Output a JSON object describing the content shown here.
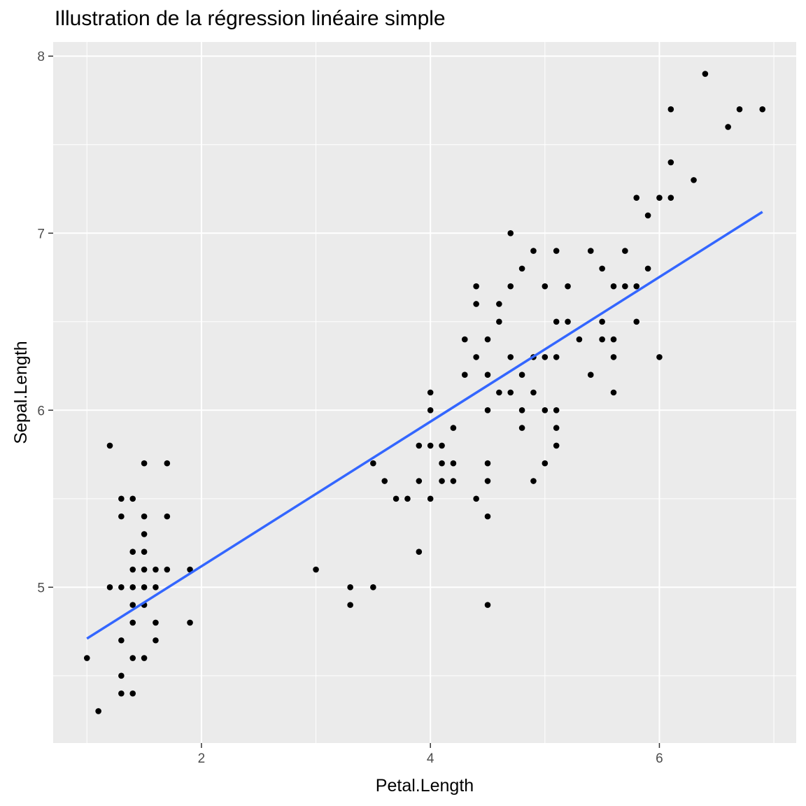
{
  "chart_data": {
    "type": "scatter",
    "title": "Illustration de la régression linéaire simple",
    "xlabel": "Petal.Length",
    "ylabel": "Sepal.Length",
    "xlim": [
      0.705,
      7.195
    ],
    "ylim": [
      4.12,
      8.08
    ],
    "x_ticks": [
      2,
      4,
      6
    ],
    "y_ticks": [
      5,
      6,
      7,
      8
    ],
    "x_tick_labels": [
      "2",
      "4",
      "6"
    ],
    "y_tick_labels": [
      "5",
      "6",
      "7",
      "8"
    ],
    "grid": true,
    "legend": "none",
    "colors": {
      "panel": "#ebebeb",
      "grid": "#ffffff",
      "points": "#000000",
      "line": "#3366ff"
    },
    "regression_line": {
      "x": [
        1.0,
        6.9
      ],
      "y": [
        4.71,
        7.12
      ]
    },
    "points": [
      [
        1.0,
        4.6
      ],
      [
        1.1,
        4.3
      ],
      [
        1.2,
        5.8
      ],
      [
        1.2,
        5.0
      ],
      [
        1.3,
        5.5
      ],
      [
        1.3,
        5.4
      ],
      [
        1.3,
        5.0
      ],
      [
        1.3,
        4.7
      ],
      [
        1.3,
        4.5
      ],
      [
        1.3,
        4.4
      ],
      [
        1.4,
        5.5
      ],
      [
        1.4,
        5.2
      ],
      [
        1.4,
        5.1
      ],
      [
        1.4,
        5.0
      ],
      [
        1.4,
        4.9
      ],
      [
        1.4,
        4.8
      ],
      [
        1.4,
        4.6
      ],
      [
        1.4,
        4.4
      ],
      [
        1.5,
        5.7
      ],
      [
        1.5,
        5.4
      ],
      [
        1.5,
        5.3
      ],
      [
        1.5,
        5.2
      ],
      [
        1.5,
        5.1
      ],
      [
        1.5,
        5.0
      ],
      [
        1.5,
        4.9
      ],
      [
        1.5,
        4.6
      ],
      [
        1.6,
        5.1
      ],
      [
        1.6,
        5.0
      ],
      [
        1.6,
        4.8
      ],
      [
        1.6,
        4.7
      ],
      [
        1.7,
        5.7
      ],
      [
        1.7,
        5.4
      ],
      [
        1.7,
        5.1
      ],
      [
        1.9,
        5.1
      ],
      [
        1.9,
        4.8
      ],
      [
        3.0,
        5.1
      ],
      [
        3.3,
        5.0
      ],
      [
        3.3,
        4.9
      ],
      [
        3.5,
        5.7
      ],
      [
        3.5,
        5.0
      ],
      [
        3.6,
        5.6
      ],
      [
        3.7,
        5.5
      ],
      [
        3.8,
        5.5
      ],
      [
        3.9,
        5.8
      ],
      [
        3.9,
        5.6
      ],
      [
        3.9,
        5.2
      ],
      [
        4.0,
        6.1
      ],
      [
        4.0,
        6.0
      ],
      [
        4.0,
        5.8
      ],
      [
        4.0,
        5.5
      ],
      [
        4.1,
        5.8
      ],
      [
        4.1,
        5.7
      ],
      [
        4.1,
        5.6
      ],
      [
        4.2,
        5.9
      ],
      [
        4.2,
        5.7
      ],
      [
        4.2,
        5.6
      ],
      [
        4.3,
        6.4
      ],
      [
        4.3,
        6.2
      ],
      [
        4.4,
        6.7
      ],
      [
        4.4,
        6.6
      ],
      [
        4.4,
        6.3
      ],
      [
        4.4,
        5.5
      ],
      [
        4.5,
        6.4
      ],
      [
        4.5,
        6.2
      ],
      [
        4.5,
        6.0
      ],
      [
        4.5,
        5.7
      ],
      [
        4.5,
        5.6
      ],
      [
        4.5,
        5.4
      ],
      [
        4.5,
        4.9
      ],
      [
        4.6,
        6.6
      ],
      [
        4.6,
        6.5
      ],
      [
        4.6,
        6.1
      ],
      [
        4.7,
        7.0
      ],
      [
        4.7,
        6.7
      ],
      [
        4.7,
        6.3
      ],
      [
        4.7,
        6.1
      ],
      [
        4.8,
        6.8
      ],
      [
        4.8,
        6.2
      ],
      [
        4.8,
        6.0
      ],
      [
        4.8,
        5.9
      ],
      [
        4.9,
        6.9
      ],
      [
        4.9,
        6.3
      ],
      [
        4.9,
        6.1
      ],
      [
        4.9,
        5.6
      ],
      [
        5.0,
        6.7
      ],
      [
        5.0,
        6.3
      ],
      [
        5.0,
        6.0
      ],
      [
        5.0,
        5.7
      ],
      [
        5.1,
        6.9
      ],
      [
        5.1,
        6.5
      ],
      [
        5.1,
        6.3
      ],
      [
        5.1,
        6.0
      ],
      [
        5.1,
        5.9
      ],
      [
        5.1,
        5.8
      ],
      [
        5.2,
        6.7
      ],
      [
        5.2,
        6.5
      ],
      [
        5.3,
        6.4
      ],
      [
        5.4,
        6.9
      ],
      [
        5.4,
        6.2
      ],
      [
        5.5,
        6.8
      ],
      [
        5.5,
        6.5
      ],
      [
        5.5,
        6.4
      ],
      [
        5.6,
        6.7
      ],
      [
        5.6,
        6.4
      ],
      [
        5.6,
        6.3
      ],
      [
        5.6,
        6.1
      ],
      [
        5.7,
        6.9
      ],
      [
        5.7,
        6.7
      ],
      [
        5.8,
        7.2
      ],
      [
        5.8,
        6.7
      ],
      [
        5.8,
        6.5
      ],
      [
        5.9,
        7.1
      ],
      [
        5.9,
        6.8
      ],
      [
        6.0,
        7.2
      ],
      [
        6.0,
        6.3
      ],
      [
        6.1,
        7.7
      ],
      [
        6.1,
        7.4
      ],
      [
        6.1,
        7.2
      ],
      [
        6.3,
        7.3
      ],
      [
        6.4,
        7.9
      ],
      [
        6.6,
        7.6
      ],
      [
        6.7,
        7.7
      ],
      [
        6.9,
        7.7
      ]
    ]
  }
}
